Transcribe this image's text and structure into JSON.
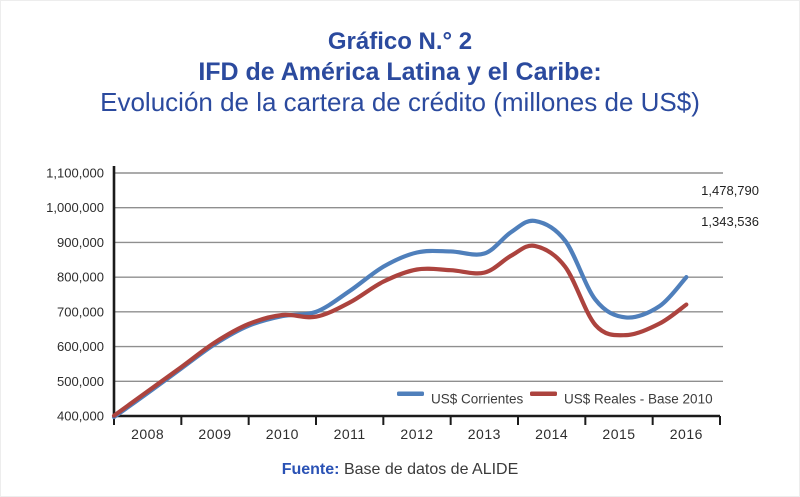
{
  "title": {
    "line1": "Gráfico N.° 2",
    "line2": "IFD de América Latina y el Caribe:",
    "line3": "Evolución de la cartera de crédito (millones de US$)"
  },
  "footer": {
    "source_label": "Fuente:",
    "source_text": "Base de datos de ALIDE"
  },
  "colors": {
    "title_blue": "#2b4a9e",
    "corrientes_blue": "#4f7fbb",
    "reales_red": "#ac433e",
    "grid_gray": "#8f8f8f",
    "axis_black": "#1b1b1b"
  },
  "chart_data": {
    "type": "line",
    "x_unit": "year (fractional points sampled from curve shape)",
    "x": [
      2007.5,
      2008,
      2008.5,
      2009,
      2009.5,
      2010,
      2010.5,
      2011,
      2011.5,
      2012,
      2012.5,
      2013,
      2013.4,
      2013.75,
      2014.2,
      2014.65,
      2015.1,
      2015.6,
      2016
    ],
    "series": [
      {
        "name": "US$ Corrientes",
        "color": "#4f7fbb",
        "values": [
          397000,
          466000,
          537000,
          607000,
          660000,
          688000,
          700000,
          760000,
          830000,
          871000,
          874000,
          868000,
          930000,
          962000,
          905000,
          735000,
          684000,
          716000,
          800000
        ]
      },
      {
        "name": "US$ Reales - Base 2010",
        "color": "#ac433e",
        "values": [
          401000,
          471000,
          541000,
          612000,
          665000,
          691000,
          686000,
          727000,
          787000,
          822000,
          820000,
          813000,
          862000,
          890000,
          830000,
          662000,
          633000,
          666000,
          721000
        ]
      }
    ],
    "x_tick_labels": [
      "2008",
      "2009",
      "2010",
      "2011",
      "2012",
      "2013",
      "2014",
      "2015",
      "2016"
    ],
    "y_ticks": [
      {
        "value": 400000,
        "label": "400,000"
      },
      {
        "value": 500000,
        "label": "500,000"
      },
      {
        "value": 600000,
        "label": "600,000"
      },
      {
        "value": 700000,
        "label": "700,000"
      },
      {
        "value": 800000,
        "label": "800,000"
      },
      {
        "value": 900000,
        "label": "900,000"
      },
      {
        "value": 1000000,
        "label": "1,000,000"
      },
      {
        "value": 1100000,
        "label": "1,100,000"
      }
    ],
    "ylim": [
      400000,
      1100000
    ],
    "xlim": [
      2007.5,
      2016.5
    ],
    "grid": true,
    "legend_position": "inside-bottom",
    "legend": [
      "US$ Corrientes",
      "US$ Reales - Base 2010"
    ],
    "annotations": [
      "1,478,790",
      "1,343,536"
    ]
  }
}
